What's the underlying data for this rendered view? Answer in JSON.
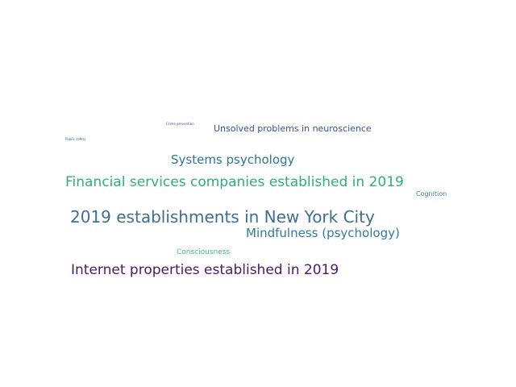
{
  "words": [
    {
      "text": "Crime prevention",
      "color": "#3b528b"
    },
    {
      "text": "Unsolved problems in neuroscience",
      "color": "#3b528b"
    },
    {
      "text": "Public safety",
      "color": "#31688e"
    },
    {
      "text": "Systems psychology",
      "color": "#2a788e"
    },
    {
      "text": "Financial services companies established in 2019",
      "color": "#2cb07a"
    },
    {
      "text": "Cognition",
      "color": "#3e7e9e"
    },
    {
      "text": "2019 establishments in New York City",
      "color": "#3d6f94"
    },
    {
      "text": "Mindfulness (psychology)",
      "color": "#2f7c9c"
    },
    {
      "text": "Consciousness",
      "color": "#3fbc73"
    },
    {
      "text": "Internet properties established in 2019",
      "color": "#4b1a67"
    }
  ]
}
